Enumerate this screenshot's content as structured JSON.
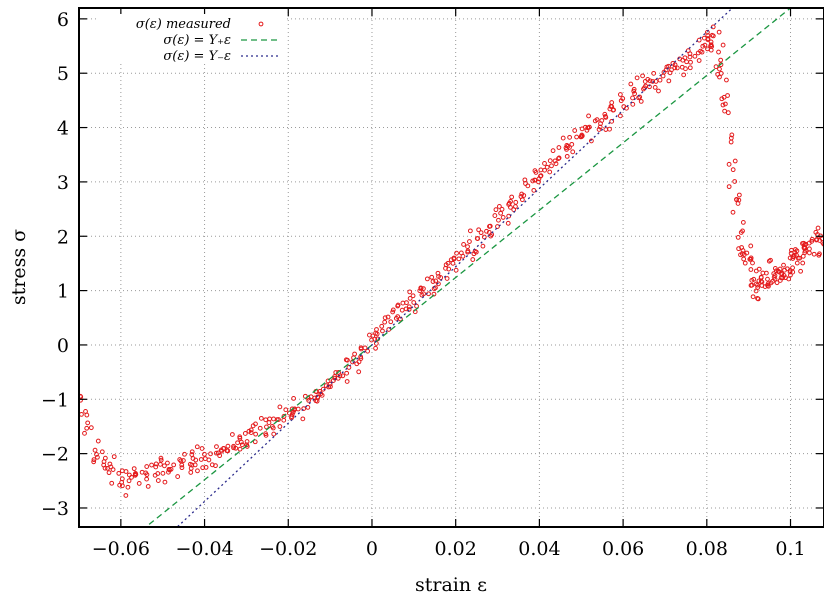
{
  "chart_data": {
    "type": "scatter",
    "xlabel": "strain ε",
    "ylabel": "stress σ",
    "xlim": [
      -0.07,
      0.108
    ],
    "ylim": [
      -3.35,
      6.2
    ],
    "grid": true,
    "legend_position": "top-left",
    "x_ticks": [
      -0.06,
      -0.04,
      -0.02,
      0,
      0.02,
      0.04,
      0.06,
      0.08,
      0.1
    ],
    "x_tick_labels": [
      "−0.06",
      "−0.04",
      "−0.02",
      "0",
      "0.02",
      "0.04",
      "0.06",
      "0.08",
      "0.1"
    ],
    "y_ticks": [
      -3,
      -2,
      -1,
      0,
      1,
      2,
      3,
      4,
      5,
      6
    ],
    "y_tick_labels": [
      "−3",
      "−2",
      "−1",
      "0",
      "1",
      "2",
      "3",
      "4",
      "5",
      "6"
    ],
    "series": [
      {
        "name": "σ(ε) measured",
        "kind": "points",
        "color": "#e41a1c",
        "x": [
          -0.07,
          -0.068,
          -0.066,
          -0.064,
          -0.062,
          -0.06,
          -0.058,
          -0.056,
          -0.054,
          -0.052,
          -0.05,
          -0.048,
          -0.046,
          -0.044,
          -0.042,
          -0.04,
          -0.038,
          -0.036,
          -0.034,
          -0.032,
          -0.03,
          -0.028,
          -0.026,
          -0.024,
          -0.022,
          -0.02,
          -0.018,
          -0.016,
          -0.014,
          -0.012,
          -0.01,
          -0.008,
          -0.006,
          -0.004,
          -0.002,
          0,
          0.002,
          0.004,
          0.006,
          0.008,
          0.01,
          0.012,
          0.014,
          0.016,
          0.018,
          0.02,
          0.022,
          0.024,
          0.026,
          0.028,
          0.03,
          0.032,
          0.034,
          0.036,
          0.038,
          0.04,
          0.042,
          0.044,
          0.046,
          0.048,
          0.05,
          0.052,
          0.054,
          0.056,
          0.058,
          0.06,
          0.062,
          0.064,
          0.066,
          0.068,
          0.07,
          0.072,
          0.074,
          0.076,
          0.078,
          0.08,
          0.081,
          0.082,
          0.083,
          0.084,
          0.085,
          0.086,
          0.087,
          0.088,
          0.089,
          0.09,
          0.091,
          0.092,
          0.093,
          0.094,
          0.095,
          0.096,
          0.097,
          0.098,
          0.099,
          0.1,
          0.101,
          0.102,
          0.103,
          0.104,
          0.105,
          0.106,
          0.107
        ],
        "y": [
          -1.1,
          -1.5,
          -1.9,
          -2.2,
          -2.35,
          -2.45,
          -2.5,
          -2.45,
          -2.4,
          -2.35,
          -2.3,
          -2.25,
          -2.2,
          -2.2,
          -2.1,
          -2.05,
          -2.0,
          -1.95,
          -1.85,
          -1.8,
          -1.7,
          -1.6,
          -1.55,
          -1.45,
          -1.4,
          -1.3,
          -1.2,
          -1.1,
          -1.0,
          -0.85,
          -0.7,
          -0.55,
          -0.4,
          -0.25,
          -0.1,
          0.1,
          0.25,
          0.4,
          0.55,
          0.7,
          0.8,
          0.95,
          1.1,
          1.25,
          1.4,
          1.55,
          1.7,
          1.85,
          2.0,
          2.15,
          2.35,
          2.5,
          2.65,
          2.85,
          3.0,
          3.15,
          3.3,
          3.45,
          3.6,
          3.75,
          3.85,
          4.0,
          4.1,
          4.2,
          4.35,
          4.45,
          4.6,
          4.7,
          4.8,
          4.9,
          5.0,
          5.1,
          5.2,
          5.3,
          5.4,
          5.5,
          5.55,
          5.45,
          5.2,
          4.9,
          4.2,
          3.3,
          2.6,
          2.1,
          1.8,
          1.5,
          1.25,
          1.1,
          1.05,
          1.1,
          1.2,
          1.3,
          1.3,
          1.35,
          1.4,
          1.5,
          1.55,
          1.6,
          1.65,
          1.7,
          1.75,
          1.85,
          1.9
        ],
        "spread": [
          0.3,
          0.35,
          0.3,
          0.25,
          0.22,
          0.2,
          0.2,
          0.2,
          0.2,
          0.18,
          0.18,
          0.18,
          0.18,
          0.18,
          0.18,
          0.18,
          0.18,
          0.18,
          0.18,
          0.18,
          0.18,
          0.18,
          0.18,
          0.18,
          0.18,
          0.18,
          0.18,
          0.18,
          0.18,
          0.18,
          0.18,
          0.18,
          0.18,
          0.18,
          0.18,
          0.18,
          0.18,
          0.18,
          0.18,
          0.18,
          0.18,
          0.18,
          0.18,
          0.18,
          0.18,
          0.18,
          0.18,
          0.18,
          0.18,
          0.18,
          0.18,
          0.18,
          0.18,
          0.18,
          0.18,
          0.18,
          0.18,
          0.18,
          0.18,
          0.18,
          0.18,
          0.18,
          0.18,
          0.18,
          0.18,
          0.18,
          0.18,
          0.18,
          0.18,
          0.18,
          0.18,
          0.18,
          0.18,
          0.18,
          0.18,
          0.18,
          0.2,
          0.3,
          0.4,
          0.5,
          0.6,
          0.6,
          0.5,
          0.4,
          0.35,
          0.3,
          0.28,
          0.25,
          0.22,
          0.22,
          0.22,
          0.22,
          0.22,
          0.22,
          0.22,
          0.22,
          0.22,
          0.22,
          0.22,
          0.22,
          0.22,
          0.22,
          0.22
        ]
      },
      {
        "name": "σ(ε) = Y₊ε",
        "kind": "line",
        "dash": "dashed",
        "color": "#1a9641",
        "x": [
          -0.07,
          0.108
        ],
        "y": [
          -4.34,
          6.696
        ]
      },
      {
        "name": "σ(ε) = Y₋ε",
        "kind": "line",
        "dash": "dotted",
        "color": "#2b2b8c",
        "x": [
          -0.07,
          0.108
        ],
        "y": [
          -5.04,
          7.776
        ]
      }
    ]
  }
}
